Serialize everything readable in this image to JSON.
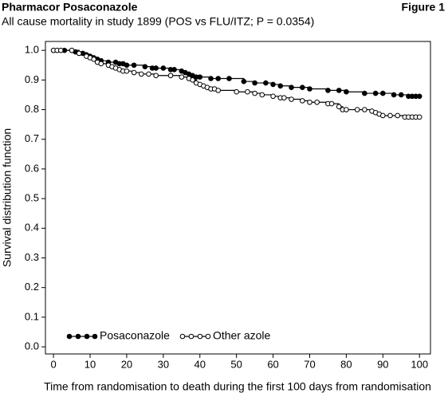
{
  "chart_data": {
    "type": "step",
    "header": "Pharmacor Posaconazole",
    "figure_label": "Figure 1",
    "title": "All cause mortality in study 1899 (POS vs FLU/ITZ; P = 0.0354)",
    "xlabel": "Time from randomisation to death during the first 100 days from randomisation",
    "ylabel": "Survival distribution function",
    "xlim": [
      -2.2,
      103
    ],
    "ylim": [
      -0.024,
      1.03
    ],
    "xticks": [
      0,
      10,
      20,
      30,
      40,
      50,
      60,
      70,
      80,
      90,
      100
    ],
    "yticks": [
      {
        "value": 0,
        "label": "0.0"
      },
      0.1,
      0.2,
      0.3,
      0.4,
      0.5,
      0.6,
      0.7,
      0.8,
      0.9,
      {
        "value": 1,
        "label": "1.0"
      }
    ],
    "grid": false,
    "legend_position": "lower left",
    "series": [
      {
        "name": "Posaconazole",
        "color": "#000000",
        "marker": "filled",
        "x": [
          0,
          3,
          5,
          6,
          7,
          8,
          9,
          10,
          11,
          12,
          13,
          15,
          17,
          18,
          19,
          20,
          22,
          25,
          27,
          28,
          30,
          32,
          33,
          35,
          36,
          37,
          38,
          39,
          40,
          43,
          45,
          48,
          52,
          55,
          58,
          60,
          62,
          65,
          68,
          70,
          75,
          78,
          80,
          85,
          88,
          90,
          93,
          95,
          97,
          98,
          99,
          100
        ],
        "values": [
          1.0,
          1.0,
          1.0,
          0.995,
          0.99,
          0.99,
          0.985,
          0.98,
          0.975,
          0.97,
          0.965,
          0.96,
          0.96,
          0.955,
          0.955,
          0.95,
          0.95,
          0.945,
          0.94,
          0.94,
          0.94,
          0.935,
          0.935,
          0.93,
          0.925,
          0.92,
          0.915,
          0.91,
          0.91,
          0.905,
          0.905,
          0.905,
          0.895,
          0.89,
          0.89,
          0.885,
          0.88,
          0.875,
          0.875,
          0.87,
          0.865,
          0.865,
          0.86,
          0.855,
          0.855,
          0.855,
          0.85,
          0.85,
          0.845,
          0.845,
          0.845,
          0.845
        ]
      },
      {
        "name": "Other azole",
        "color": "#000000",
        "marker": "open",
        "x": [
          0,
          1,
          2,
          5,
          7,
          9,
          10,
          11,
          12,
          13,
          15,
          16,
          17,
          18,
          19,
          20,
          22,
          24,
          26,
          28,
          32,
          35,
          37,
          38,
          39,
          40,
          41,
          42,
          43,
          44,
          45,
          50,
          53,
          55,
          57,
          60,
          62,
          63,
          65,
          68,
          70,
          72,
          75,
          76,
          78,
          79,
          80,
          83,
          85,
          87,
          88,
          89,
          90,
          92,
          94,
          96,
          97,
          98,
          99,
          100
        ],
        "values": [
          1.0,
          1.0,
          1.0,
          1.0,
          0.99,
          0.98,
          0.975,
          0.97,
          0.96,
          0.955,
          0.95,
          0.945,
          0.94,
          0.935,
          0.93,
          0.93,
          0.925,
          0.92,
          0.92,
          0.915,
          0.915,
          0.91,
          0.905,
          0.9,
          0.89,
          0.885,
          0.88,
          0.875,
          0.87,
          0.87,
          0.865,
          0.86,
          0.86,
          0.855,
          0.85,
          0.845,
          0.84,
          0.84,
          0.835,
          0.83,
          0.825,
          0.825,
          0.82,
          0.82,
          0.81,
          0.8,
          0.8,
          0.8,
          0.8,
          0.795,
          0.79,
          0.785,
          0.78,
          0.78,
          0.78,
          0.775,
          0.775,
          0.775,
          0.775,
          0.775
        ]
      }
    ]
  }
}
